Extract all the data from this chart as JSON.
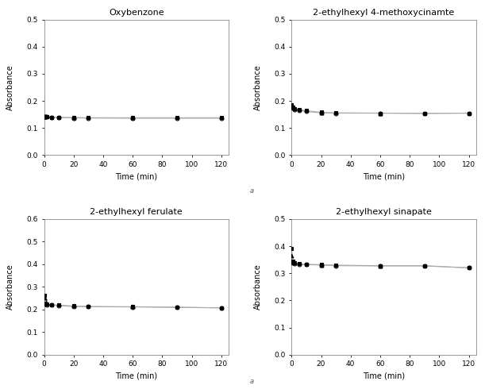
{
  "subplots": [
    {
      "title": "Oxybenzone",
      "xlabel": "Time (min)",
      "ylabel": "Absorbance",
      "ylim": [
        0.0,
        0.5
      ],
      "yticks": [
        0.0,
        0.1,
        0.2,
        0.3,
        0.4,
        0.5
      ],
      "series1": {
        "x": [
          0,
          1,
          2,
          5,
          10,
          20,
          30,
          60,
          90,
          120
        ],
        "y": [
          0.143,
          0.142,
          0.141,
          0.14,
          0.139,
          0.139,
          0.138,
          0.138,
          0.138,
          0.138
        ],
        "marker": "s",
        "fillstyle": "full"
      },
      "series2": {
        "x": [
          0,
          1,
          2,
          5,
          10,
          20,
          30,
          60,
          90,
          120
        ],
        "y": [
          0.143,
          0.142,
          0.141,
          0.14,
          0.139,
          0.137,
          0.137,
          0.136,
          0.136,
          0.136
        ],
        "marker": "o",
        "fillstyle": "none"
      },
      "series3": {
        "x": [
          0,
          20,
          60
        ],
        "y": [
          0.143,
          0.139,
          0.138
        ],
        "marker": "^",
        "fillstyle": "full"
      }
    },
    {
      "title": "2-ethylhexyl 4-methoxycinamte",
      "xlabel": "Time (min)",
      "ylabel": "Absorbance",
      "ylim": [
        0.0,
        0.5
      ],
      "yticks": [
        0.0,
        0.1,
        0.2,
        0.3,
        0.4,
        0.5
      ],
      "series1": {
        "x": [
          0,
          1,
          2,
          5,
          10,
          20,
          30,
          60,
          90,
          120
        ],
        "y": [
          0.185,
          0.178,
          0.172,
          0.168,
          0.164,
          0.158,
          0.156,
          0.155,
          0.154,
          0.155
        ],
        "marker": "s",
        "fillstyle": "full"
      },
      "series2": {
        "x": [
          0,
          1,
          2,
          5,
          10,
          20,
          30,
          60,
          90,
          120
        ],
        "y": [
          0.183,
          0.175,
          0.169,
          0.165,
          0.161,
          0.156,
          0.155,
          0.155,
          0.154,
          0.155
        ],
        "marker": "o",
        "fillstyle": "none"
      },
      "series3": {
        "x": [
          0,
          20,
          60
        ],
        "y": [
          0.184,
          0.157,
          0.155
        ],
        "marker": "^",
        "fillstyle": "full"
      }
    },
    {
      "title": "2-ethylhexyl ferulate",
      "xlabel": "Time (min)",
      "ylabel": "Absorbance",
      "ylim": [
        0.0,
        0.6
      ],
      "yticks": [
        0.0,
        0.1,
        0.2,
        0.3,
        0.4,
        0.5,
        0.6
      ],
      "series1": {
        "x": [
          0,
          1,
          2,
          5,
          10,
          20,
          30,
          60,
          90,
          120
        ],
        "y": [
          0.262,
          0.228,
          0.223,
          0.221,
          0.219,
          0.215,
          0.213,
          0.212,
          0.21,
          0.207
        ],
        "marker": "s",
        "fillstyle": "full"
      },
      "series2": {
        "x": [
          0,
          1,
          2,
          5,
          10,
          20,
          30,
          60,
          90,
          120
        ],
        "y": [
          0.24,
          0.224,
          0.221,
          0.219,
          0.217,
          0.213,
          0.212,
          0.211,
          0.209,
          0.207
        ],
        "marker": "o",
        "fillstyle": "none"
      },
      "series3": {
        "x": [
          0,
          20,
          60
        ],
        "y": [
          0.251,
          0.215,
          0.212
        ],
        "marker": "^",
        "fillstyle": "full"
      }
    },
    {
      "title": "2-ethylhexyl sinapate",
      "xlabel": "Time (min)",
      "ylabel": "Absorbance",
      "ylim": [
        0.0,
        0.5
      ],
      "yticks": [
        0.0,
        0.1,
        0.2,
        0.3,
        0.4,
        0.5
      ],
      "series1": {
        "x": [
          0,
          1,
          2,
          5,
          10,
          20,
          30,
          60,
          90,
          120
        ],
        "y": [
          0.39,
          0.345,
          0.338,
          0.335,
          0.333,
          0.332,
          0.33,
          0.328,
          0.328,
          0.32
        ],
        "marker": "s",
        "fillstyle": "full"
      },
      "series2": {
        "x": [
          0,
          1,
          2,
          5,
          10,
          20,
          30,
          60,
          90,
          120
        ],
        "y": [
          0.343,
          0.338,
          0.335,
          0.333,
          0.332,
          0.33,
          0.328,
          0.327,
          0.327,
          0.32
        ],
        "marker": "o",
        "fillstyle": "none"
      },
      "series3": {
        "x": [
          0,
          20,
          60
        ],
        "y": [
          0.366,
          0.331,
          0.328
        ],
        "marker": "^",
        "fillstyle": "full"
      }
    }
  ],
  "figure_bg": "#ffffff",
  "axes_bg": "#ffffff",
  "line_color": "#aaaaaa",
  "line_width": 0.8,
  "markersize": 3.5,
  "markeredgewidth": 0.8
}
